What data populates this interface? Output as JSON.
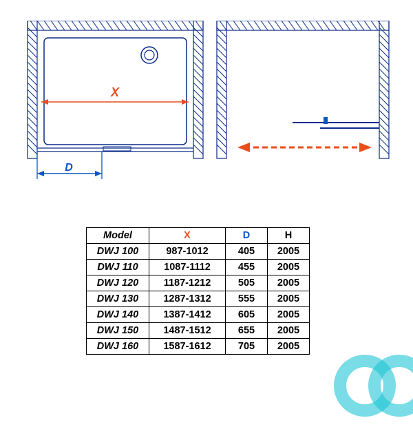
{
  "diagram": {
    "stroke_color": "#0a2a8a",
    "accent_red": "#e94e1b",
    "accent_blue": "#0a57c2",
    "x_label": "X",
    "d_label": "D",
    "watermark_color": "#20c5d6"
  },
  "table": {
    "columns": [
      "Model",
      "X",
      "D",
      "H"
    ],
    "rows": [
      [
        "DWJ 100",
        "987-1012",
        "405",
        "2005"
      ],
      [
        "DWJ 110",
        "1087-1112",
        "455",
        "2005"
      ],
      [
        "DWJ 120",
        "1187-1212",
        "505",
        "2005"
      ],
      [
        "DWJ 130",
        "1287-1312",
        "555",
        "2005"
      ],
      [
        "DWJ 140",
        "1387-1412",
        "605",
        "2005"
      ],
      [
        "DWJ 150",
        "1487-1512",
        "655",
        "2005"
      ],
      [
        "DWJ 160",
        "1587-1612",
        "705",
        "2005"
      ]
    ]
  }
}
